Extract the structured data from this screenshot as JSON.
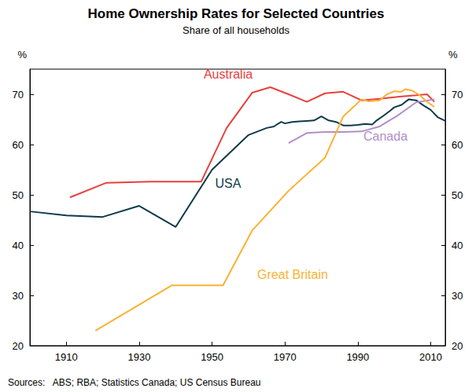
{
  "chart_data": {
    "type": "line",
    "title": "Home Ownership Rates for Selected Countries",
    "subtitle": "Share of all households",
    "y_label": "%",
    "y2_label": "%",
    "source": "Sources:   ABS; RBA; Statistics Canada; US Census Bureau",
    "xlim": [
      1900,
      2014
    ],
    "xticks": [
      1910,
      1930,
      1950,
      1970,
      1990,
      2010
    ],
    "ylim": [
      20,
      75
    ],
    "yticks": [
      20,
      30,
      40,
      50,
      60,
      70
    ],
    "y2lim": [
      20,
      75
    ],
    "y2ticks": [
      20,
      30,
      40,
      50,
      60,
      70
    ],
    "grid": false,
    "series": [
      {
        "name": "Australia",
        "color": "#e8403f",
        "x": [
          1911,
          1921,
          1933,
          1947,
          1954,
          1961,
          1966,
          1971,
          1976,
          1981,
          1986,
          1991,
          1996,
          2001,
          2006,
          2009,
          2011
        ],
        "values": [
          49.5,
          52.4,
          52.6,
          52.6,
          63.3,
          70.3,
          71.4,
          70.0,
          68.5,
          70.2,
          70.5,
          68.8,
          69.1,
          69.5,
          69.8,
          70.0,
          68.5
        ]
      },
      {
        "name": "USA",
        "color": "#0e3a4a",
        "x": [
          1900,
          1910,
          1920,
          1930,
          1940,
          1950,
          1960,
          1965,
          1967,
          1968,
          1969,
          1970,
          1972,
          1974,
          1976,
          1978,
          1980,
          1982,
          1984,
          1986,
          1988,
          1990,
          1992,
          1994,
          1995,
          1997,
          1999,
          2000,
          2002,
          2004,
          2006,
          2008,
          2010,
          2012,
          2014
        ],
        "values": [
          46.7,
          45.9,
          45.6,
          47.8,
          43.6,
          55.0,
          61.9,
          63.3,
          63.6,
          64.1,
          64.5,
          64.2,
          64.5,
          64.6,
          64.7,
          64.8,
          65.6,
          64.8,
          64.5,
          63.8,
          63.8,
          63.9,
          64.1,
          64.0,
          64.7,
          65.7,
          66.8,
          67.4,
          67.9,
          69.0,
          68.8,
          67.8,
          66.9,
          65.4,
          64.7
        ]
      },
      {
        "name": "Canada",
        "color": "#b18fc9",
        "x": [
          1971,
          1976,
          1981,
          1986,
          1991,
          1996,
          2001,
          2006,
          2011
        ],
        "values": [
          60.3,
          62.3,
          62.5,
          62.5,
          62.6,
          63.6,
          65.8,
          68.4,
          69.0
        ]
      },
      {
        "name": "Great Britain",
        "color": "#f9b234",
        "x": [
          1918,
          1939,
          1953,
          1961,
          1971,
          1981,
          1986,
          1989,
          1991,
          1993,
          1996,
          1998,
          2000,
          2002,
          2003,
          2005,
          2007,
          2009,
          2011
        ],
        "values": [
          23.0,
          32.0,
          32.0,
          42.9,
          50.8,
          57.4,
          65.6,
          67.6,
          69.0,
          68.6,
          68.8,
          70.0,
          70.6,
          70.5,
          71.0,
          70.7,
          69.8,
          68.5,
          67.5
        ]
      }
    ]
  }
}
